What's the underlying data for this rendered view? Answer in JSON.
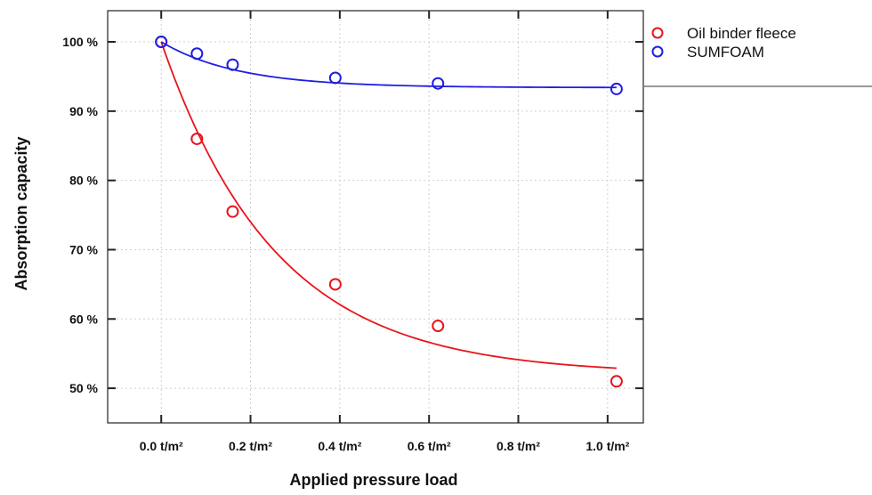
{
  "chart_data": {
    "type": "scatter",
    "xlabel": "Applied pressure load",
    "ylabel": "Absorption capacity",
    "xlim": [
      -0.12,
      1.08
    ],
    "ylim": [
      45,
      104.5
    ],
    "x_ticks": [
      0,
      0.2,
      0.4,
      0.6,
      0.8,
      1.0
    ],
    "x_tick_labels": [
      "0.0 t/m²",
      "0.2 t/m²",
      "0.4 t/m²",
      "0.6 t/m²",
      "0.8 t/m²",
      "1.0 t/m²"
    ],
    "y_ticks": [
      50,
      60,
      70,
      80,
      90,
      100
    ],
    "y_tick_labels": [
      "50 %",
      "60 %",
      "70 %",
      "80 %",
      "90 %",
      "100 %"
    ],
    "grid": true,
    "legend_position": "outside-top-right",
    "series": [
      {
        "name": "Oil binder fleece",
        "color": "#e8141c",
        "points": [
          [
            0.0,
            100.0
          ],
          [
            0.08,
            86.0
          ],
          [
            0.16,
            75.5
          ],
          [
            0.39,
            65.0
          ],
          [
            0.62,
            59.0
          ],
          [
            1.02,
            51.0
          ]
        ],
        "fit": {
          "form": "exponential",
          "asymptote": 52.0,
          "amplitude": 48.0,
          "rate": 3.9
        }
      },
      {
        "name": "SUMFOAM",
        "color": "#1f1fe0",
        "points": [
          [
            0.0,
            100.0
          ],
          [
            0.08,
            98.3
          ],
          [
            0.16,
            96.7
          ],
          [
            0.39,
            94.8
          ],
          [
            0.62,
            94.0
          ],
          [
            1.02,
            93.2
          ]
        ],
        "fit": {
          "form": "exponential",
          "asymptote": 93.4,
          "amplitude": 6.6,
          "rate": 5.8
        }
      }
    ]
  }
}
